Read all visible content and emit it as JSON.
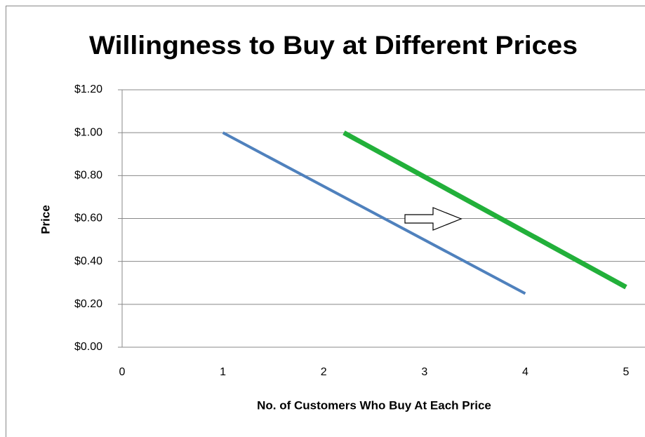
{
  "chart_data": {
    "type": "line",
    "title": "Willingness to Buy at Different Prices",
    "xlabel": "No. of Customers Who Buy At Each Price",
    "ylabel": "Price",
    "series": [
      {
        "color": "#4f81bd",
        "x": [
          1,
          4
        ],
        "values": [
          1.0,
          0.25
        ]
      },
      {
        "color": "#22b03a",
        "x": [
          2.2,
          5
        ],
        "values": [
          1.0,
          0.28
        ]
      }
    ],
    "xlim": [
      0,
      5
    ],
    "xticks": [
      0,
      1,
      2,
      3,
      4,
      5
    ],
    "ylim": [
      0,
      1.2
    ],
    "yticks": [
      {
        "value": 0,
        "label": "$0.00"
      },
      {
        "value": 0.2,
        "label": "$0.20"
      },
      {
        "value": 0.4,
        "label": "$0.40"
      },
      {
        "value": 0.6,
        "label": "$0.60"
      },
      {
        "value": 0.8,
        "label": "$0.80"
      },
      {
        "value": 1.0,
        "label": "$1.00"
      },
      {
        "value": 1.2,
        "label": "$1.20"
      }
    ],
    "grid": true
  }
}
